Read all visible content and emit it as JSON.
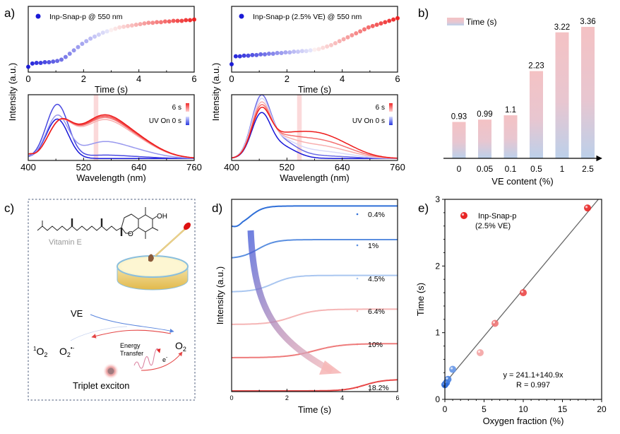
{
  "panel_labels": {
    "a": "a)",
    "b": "b)",
    "c": "c)",
    "d": "d)",
    "e": "e)"
  },
  "colors": {
    "blue": "#1a1ad6",
    "red": "#f02a2a",
    "bar_top": "#f4c2c4",
    "bar_bottom": "#bdd0ea",
    "d_series": [
      "#2f6fd8",
      "#5b8fe0",
      "#a9c6f0",
      "#f5b5b5",
      "#ee7b7b",
      "#e84848"
    ],
    "fit_line": "#666666"
  },
  "chart_data": [
    {
      "id": "a-top-left",
      "type": "scatter",
      "title": "",
      "legend": "Inp-Snap-p @ 550 nm",
      "legend_position": "top-left",
      "xlabel": "Time (s)",
      "ylabel": "Intensity (a.u.)",
      "xlim": [
        0,
        6
      ],
      "ylim": [
        0,
        1
      ],
      "xticks": [
        "0",
        "2",
        "4",
        "6"
      ],
      "x": [
        0,
        0.15,
        0.3,
        0.45,
        0.6,
        0.75,
        0.9,
        1.05,
        1.2,
        1.35,
        1.5,
        1.65,
        1.8,
        1.95,
        2.1,
        2.25,
        2.4,
        2.55,
        2.7,
        2.85,
        3.0,
        3.15,
        3.3,
        3.45,
        3.6,
        3.75,
        3.9,
        4.05,
        4.2,
        4.35,
        4.5,
        4.65,
        4.8,
        4.95,
        5.1,
        5.25,
        5.4,
        5.55,
        5.7,
        5.85,
        6.0
      ],
      "y": [
        0.08,
        0.13,
        0.14,
        0.14,
        0.15,
        0.15,
        0.16,
        0.17,
        0.19,
        0.23,
        0.28,
        0.33,
        0.38,
        0.43,
        0.47,
        0.51,
        0.54,
        0.57,
        0.6,
        0.62,
        0.64,
        0.66,
        0.68,
        0.69,
        0.7,
        0.71,
        0.72,
        0.73,
        0.74,
        0.75,
        0.75,
        0.76,
        0.76,
        0.77,
        0.77,
        0.78,
        0.78,
        0.78,
        0.79,
        0.79,
        0.8
      ]
    },
    {
      "id": "a-top-right",
      "type": "scatter",
      "legend": "Inp-Snap-p (2.5% VE) @ 550 nm",
      "legend_position": "top-left",
      "xlabel": "Time (s)",
      "ylabel": "Intensity (a.u.)",
      "xlim": [
        0,
        6
      ],
      "ylim": [
        0,
        1
      ],
      "xticks": [
        "0",
        "2",
        "4",
        "6"
      ],
      "x": [
        0,
        0.15,
        0.3,
        0.45,
        0.6,
        0.75,
        0.9,
        1.05,
        1.2,
        1.35,
        1.5,
        1.65,
        1.8,
        1.95,
        2.1,
        2.25,
        2.4,
        2.55,
        2.7,
        2.85,
        3.0,
        3.15,
        3.3,
        3.45,
        3.6,
        3.75,
        3.9,
        4.05,
        4.2,
        4.35,
        4.5,
        4.65,
        4.8,
        4.95,
        5.1,
        5.25,
        5.4,
        5.55,
        5.7,
        5.85,
        6.0
      ],
      "y": [
        0.12,
        0.24,
        0.24,
        0.25,
        0.25,
        0.26,
        0.26,
        0.27,
        0.27,
        0.28,
        0.28,
        0.29,
        0.29,
        0.3,
        0.3,
        0.31,
        0.31,
        0.32,
        0.32,
        0.33,
        0.34,
        0.35,
        0.37,
        0.39,
        0.41,
        0.44,
        0.47,
        0.5,
        0.53,
        0.56,
        0.59,
        0.62,
        0.65,
        0.68,
        0.7,
        0.72,
        0.74,
        0.76,
        0.78,
        0.8,
        0.82
      ]
    },
    {
      "id": "a-bottom-left",
      "type": "line",
      "xlabel": "Wavelength (nm)",
      "ylabel": "Intensity (a.u.)",
      "xlim": [
        400,
        760
      ],
      "ylim": [
        0,
        1
      ],
      "xticks": [
        "400",
        "520",
        "640",
        "760"
      ],
      "highlight_band_nm": [
        542,
        552
      ],
      "legend": {
        "top": "6 s",
        "bottom": "UV On 0 s"
      },
      "legend_position": "top-right",
      "series": [
        {
          "name": "0 s",
          "color_t": 0.0,
          "peak1": 0.6,
          "peak2": 0.0
        },
        {
          "name": "t1",
          "color_t": 0.12,
          "peak1": 0.82,
          "peak2": 0.05
        },
        {
          "name": "t2",
          "color_t": 0.3,
          "peak1": 0.64,
          "peak2": 0.25
        },
        {
          "name": "t3",
          "color_t": 0.65,
          "peak1": 0.3,
          "peak2": 0.57
        },
        {
          "name": "t4",
          "color_t": 0.8,
          "peak1": 0.3,
          "peak2": 0.6
        },
        {
          "name": "t5",
          "color_t": 0.9,
          "peak1": 0.3,
          "peak2": 0.62
        },
        {
          "name": "6 s",
          "color_t": 1.0,
          "peak1": 0.3,
          "peak2": 0.64
        }
      ]
    },
    {
      "id": "a-bottom-right",
      "type": "line",
      "xlabel": "Wavelength (nm)",
      "ylabel": "Intensity (a.u.)",
      "xlim": [
        400,
        760
      ],
      "ylim": [
        0,
        1
      ],
      "xticks": [
        "400",
        "520",
        "640",
        "760"
      ],
      "highlight_band_nm": [
        542,
        552
      ],
      "legend": {
        "top": "6 s",
        "bottom": "UV On 0 s"
      },
      "legend_position": "top-right",
      "series": [
        {
          "name": "0 s",
          "color_t": 0.0,
          "peak1": 0.58,
          "shoulder": 0.0
        },
        {
          "name": "t1",
          "color_t": 0.2,
          "peak1": 0.8,
          "shoulder": 0.03
        },
        {
          "name": "t2",
          "color_t": 0.45,
          "peak1": 0.75,
          "shoulder": 0.08
        },
        {
          "name": "t3",
          "color_t": 0.65,
          "peak1": 0.7,
          "shoulder": 0.14
        },
        {
          "name": "t4",
          "color_t": 0.8,
          "peak1": 0.66,
          "shoulder": 0.2
        },
        {
          "name": "6 s",
          "color_t": 1.0,
          "peak1": 0.62,
          "shoulder": 0.27
        }
      ]
    },
    {
      "id": "b",
      "type": "bar",
      "title": "",
      "legend": "Time (s)",
      "legend_position": "top-left",
      "categories": [
        "0",
        "0.05",
        "0.1",
        "0.5",
        "1",
        "2.5"
      ],
      "values": [
        0.93,
        0.99,
        1.1,
        2.23,
        3.22,
        3.36
      ],
      "value_labels": [
        "0.93",
        "0.99",
        "1.1",
        "2.23",
        "3.22",
        "3.36"
      ],
      "xlabel": "VE content (%)",
      "ylabel": "",
      "ylim": [
        0,
        3.5
      ]
    },
    {
      "id": "d",
      "type": "line",
      "xlabel": "Time (s)",
      "ylabel": "Intensity (a.u.)",
      "xlim": [
        0,
        6
      ],
      "xticks": [
        "0",
        "2",
        "4",
        "6"
      ],
      "legend_position": "right",
      "series": [
        {
          "name": "0.4%",
          "onset": 0.3,
          "rise": 0.85,
          "width": 0.7
        },
        {
          "name": "1%",
          "onset": 0.5,
          "rise": 0.75,
          "width": 0.9
        },
        {
          "name": "4.5%",
          "onset": 1.0,
          "rise": 0.65,
          "width": 1.0
        },
        {
          "name": "6.4%",
          "onset": 1.6,
          "rise": 0.6,
          "width": 1.2
        },
        {
          "name": "10%",
          "onset": 2.3,
          "rise": 0.55,
          "width": 1.4
        },
        {
          "name": "18.2%",
          "onset": 4.3,
          "rise": 0.45,
          "width": 1.0
        }
      ]
    },
    {
      "id": "e",
      "type": "scatter",
      "legend": "Inp-Snap-p",
      "legend_sub": "(2.5% VE)",
      "legend_position": "top-left",
      "xlabel": "Oxygen fraction (%)",
      "ylabel": "Time (s)",
      "xlim": [
        0,
        20
      ],
      "ylim": [
        0,
        3
      ],
      "xticks": [
        "0",
        "5",
        "10",
        "15",
        "20"
      ],
      "yticks": [
        "0",
        "1",
        "2",
        "3"
      ],
      "x": [
        0.0,
        0.2,
        0.4,
        1.0,
        4.5,
        6.4,
        10.0,
        18.2
      ],
      "y": [
        0.22,
        0.25,
        0.3,
        0.45,
        0.7,
        1.14,
        1.6,
        2.87
      ],
      "point_color_t": [
        0.0,
        0.05,
        0.15,
        0.25,
        0.6,
        0.75,
        0.9,
        1.0
      ],
      "fit": {
        "intercept": 0.241,
        "slope": 0.1409,
        "label": "y = 241.1+140.9x",
        "r_label": "R = 0.997"
      }
    }
  ],
  "panel_c": {
    "molecule_label": "Vitamin E",
    "oh_label": "OH",
    "o_label": "O",
    "ve_label": "VE",
    "singlet_oxygen": {
      "sup": "1",
      "base": "O",
      "sub": "2"
    },
    "superoxide": {
      "base": "O",
      "sub": "2",
      "sup": "•-"
    },
    "oxygen": {
      "base": "O",
      "sub": "2"
    },
    "energy_label_1": "Energy",
    "energy_label_2": "Transfer",
    "electron_label": {
      "base": "e",
      "sup": "-"
    },
    "exciton_label": "Triplet exciton"
  }
}
